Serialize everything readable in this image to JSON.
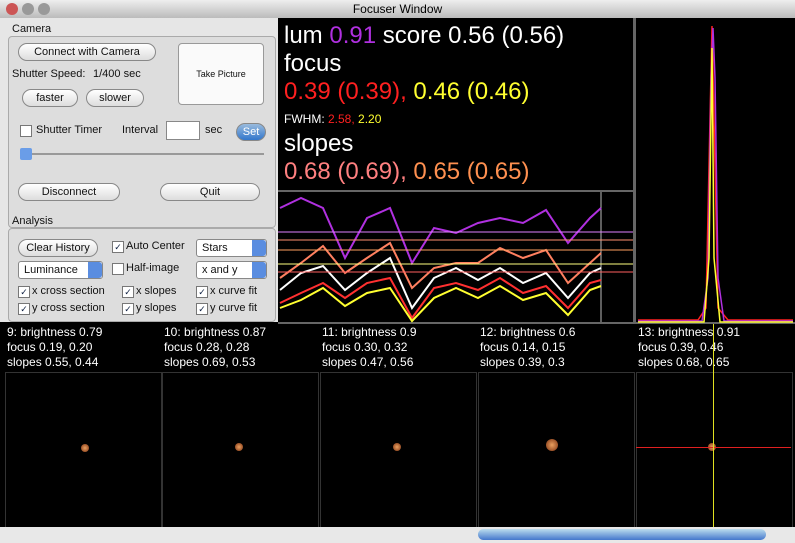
{
  "window": {
    "title": "Focuser Window"
  },
  "camera": {
    "heading": "Camera",
    "connect": "Connect with Camera",
    "take_picture": "Take Picture",
    "shutter_label": "Shutter Speed:",
    "shutter_value": "1/400 sec",
    "faster": "faster",
    "slower": "slower",
    "timer": "Shutter Timer",
    "interval": "Interval",
    "sec": "sec",
    "set": "Set",
    "disconnect": "Disconnect",
    "quit": "Quit"
  },
  "analysis": {
    "heading": "Analysis",
    "clear": "Clear History",
    "auto_center": "Auto Center",
    "stars": "Stars",
    "luminance": "Luminance",
    "half_image": "Half-image",
    "x_and_y": "x and y",
    "x_cross": "x cross section",
    "x_slopes": "x slopes",
    "x_fit": "x curve fit",
    "y_cross": "y cross section",
    "y_slopes": "y slopes",
    "y_fit": "y curve fit"
  },
  "readout": {
    "lum": "lum",
    "lum_value": "0.91",
    "score": "score",
    "score_value": "0.56 (0.56)",
    "focus": "focus",
    "focus_x": "0.39 (0.39),",
    "focus_y": "0.46 (0.46)",
    "fwhm": "FWHM:",
    "fwhm_x": "2.58,",
    "fwhm_y": "2.20",
    "slopes": "slopes",
    "slopes_x": "0.68 (0.69),",
    "slopes_y": "0.65 (0.65)"
  },
  "frames": [
    {
      "line1": "9: brightness 0.79",
      "line2": "focus 0.19, 0.20",
      "line3": "slopes 0.55, 0.44"
    },
    {
      "line1": "10: brightness 0.87",
      "line2": "focus 0.28, 0.28",
      "line3": "slopes 0.69, 0.53"
    },
    {
      "line1": "11: brightness 0.9",
      "line2": "focus 0.30, 0.32",
      "line3": "slopes 0.47, 0.56"
    },
    {
      "line1": "12: brightness 0.6",
      "line2": "focus 0.14, 0.15",
      "line3": "slopes 0.39, 0.3"
    },
    {
      "line1": "13: brightness 0.91",
      "line2": "focus 0.39, 0.46",
      "line3": "slopes 0.68, 0.65"
    }
  ]
}
